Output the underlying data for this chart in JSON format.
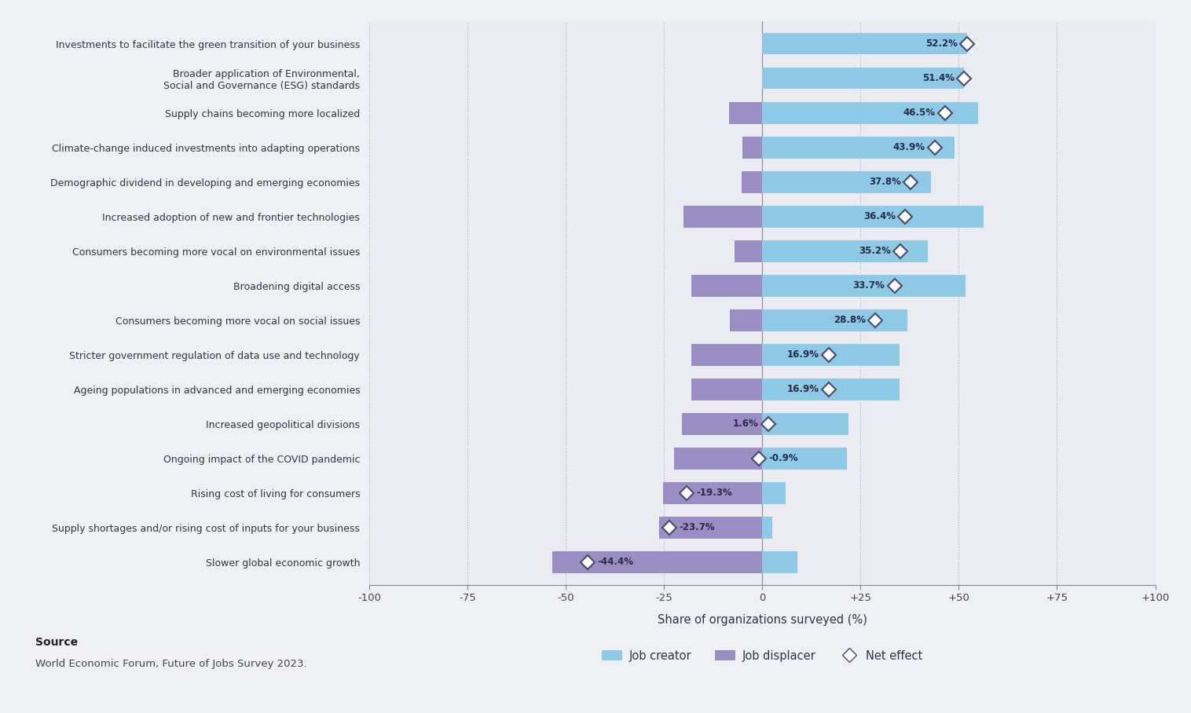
{
  "categories": [
    "Investments to facilitate the green transition of your business",
    "Broader application of Environmental,\nSocial and Governance (ESG) standards",
    "Supply chains becoming more localized",
    "Climate-change induced investments into adapting operations",
    "Demographic dividend in developing and emerging economies",
    "Increased adoption of new and frontier technologies",
    "Consumers becoming more vocal on environmental issues",
    "Broadening digital access",
    "Consumers becoming more vocal on social issues",
    "Stricter government regulation of data use and technology",
    "Ageing populations in advanced and emerging economies",
    "Increased geopolitical divisions",
    "Ongoing impact of the COVID pandemic",
    "Rising cost of living for consumers",
    "Supply shortages and/or rising cost of inputs for your business",
    "Slower global economic growth"
  ],
  "net_effect": [
    52.2,
    51.4,
    46.5,
    43.9,
    37.8,
    36.4,
    35.2,
    33.7,
    28.8,
    16.9,
    16.9,
    1.6,
    -0.9,
    -19.3,
    -23.7,
    -44.4
  ],
  "creator_vals": [
    52.2,
    51.4,
    55.0,
    49.0,
    43.0,
    56.4,
    42.2,
    51.7,
    37.0,
    35.0,
    35.0,
    22.0,
    21.5,
    6.0,
    2.5,
    9.0
  ],
  "displacer_vals": [
    0.0,
    0.0,
    8.5,
    5.1,
    5.2,
    20.0,
    7.0,
    18.0,
    8.2,
    18.1,
    18.1,
    20.4,
    22.4,
    25.3,
    26.2,
    53.4
  ],
  "bar_color_creator": "#8ecae6",
  "bar_color_displacer": "#9b8ec4",
  "background_color": "#eef0f4",
  "plot_bg_color": "#eaecf2",
  "xlabel": "Share of organizations surveyed (%)",
  "xlim": [
    -100,
    100
  ],
  "xticks": [
    -100,
    -75,
    -50,
    -25,
    0,
    25,
    50,
    75,
    100
  ],
  "xtick_labels": [
    "-100",
    "-75",
    "-50",
    "-25",
    "0",
    "+25",
    "+50",
    "+75",
    "+100"
  ],
  "source_title": "Source",
  "source_text": "World Economic Forum, Future of Jobs Survey 2023.",
  "diamond_color": "#ffffff",
  "diamond_edge_color": "#4a4a6a",
  "label_color": "#2a2a4a"
}
